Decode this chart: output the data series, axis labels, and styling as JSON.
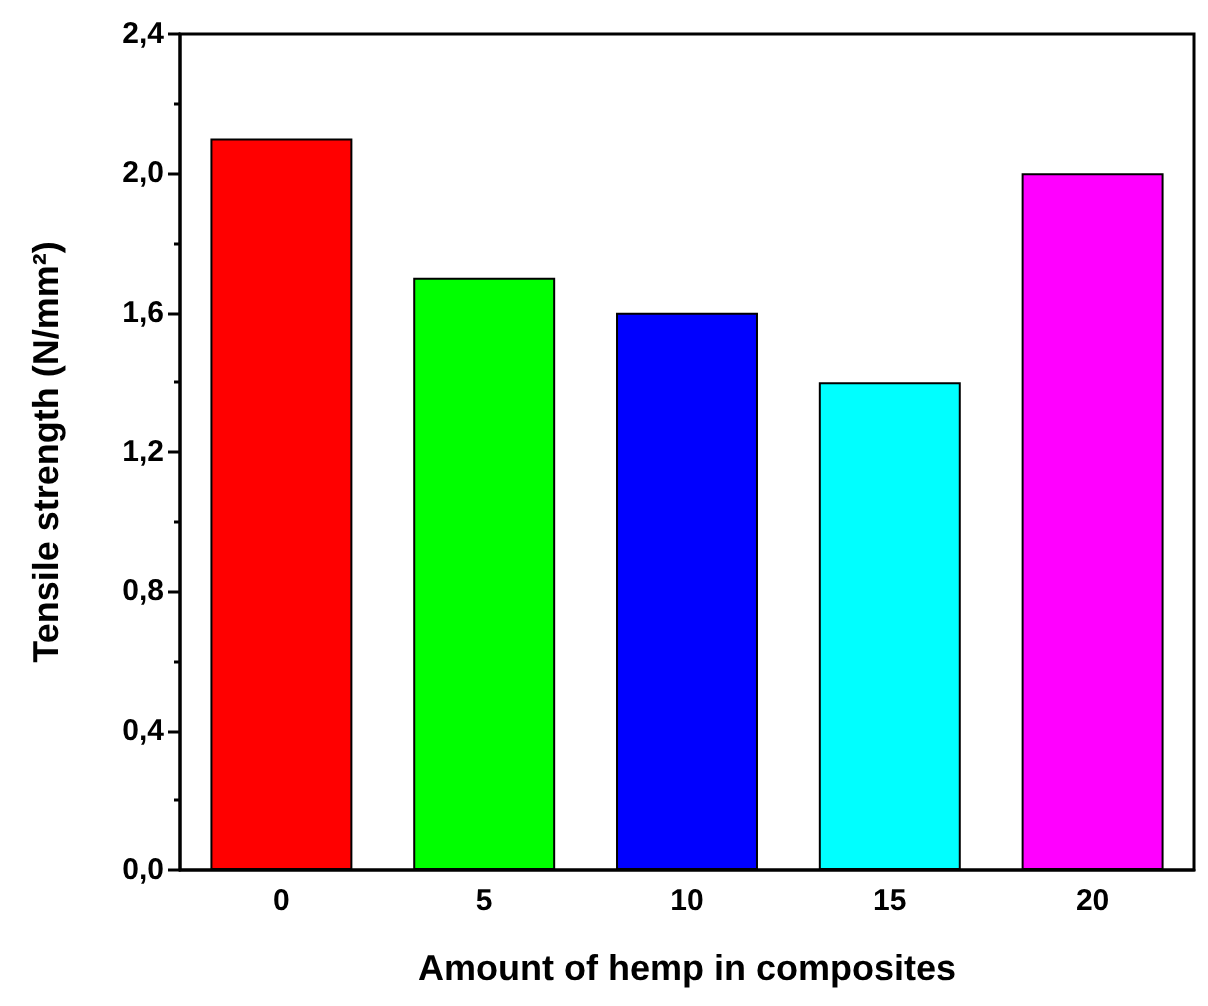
{
  "chart_data": {
    "type": "bar",
    "xlabel": "Amount of hemp in composites",
    "ylabel": "Tensile strength (N/mm²)",
    "categories": [
      "0",
      "5",
      "10",
      "15",
      "20"
    ],
    "values": [
      2.1,
      1.7,
      1.6,
      1.4,
      2.0
    ],
    "colors": [
      "#ff0000",
      "#00ff00",
      "#0000ff",
      "#00ffff",
      "#ff00ff"
    ],
    "ylim": [
      0,
      2.4
    ],
    "yticks": [
      {
        "value": 0,
        "label": "0,0"
      },
      {
        "value": 0.4,
        "label": "0,4"
      },
      {
        "value": 0.8,
        "label": "0,8"
      },
      {
        "value": 1.2,
        "label": "1,2"
      },
      {
        "value": 1.6,
        "label": "1,6"
      },
      {
        "value": 2.0,
        "label": "2,0"
      },
      {
        "value": 2.4,
        "label": "2,4"
      }
    ]
  }
}
